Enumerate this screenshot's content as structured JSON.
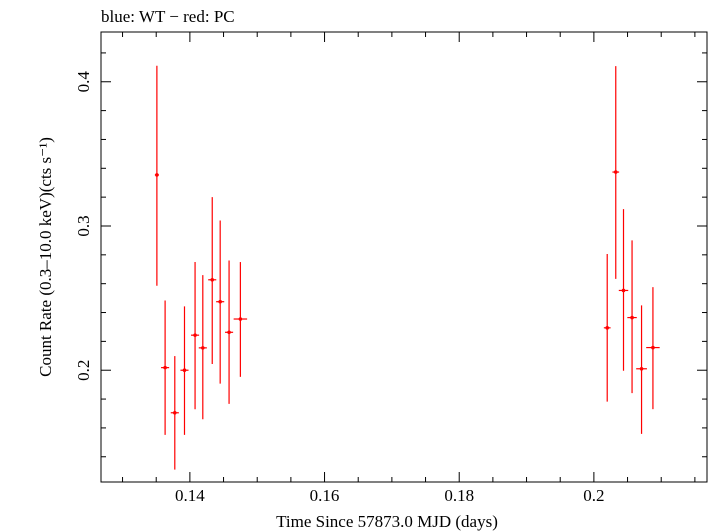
{
  "chart_data": {
    "type": "scatter",
    "title": "blue: WT − red: PC",
    "xlabel": "Time Since 57873.0 MJD (days)",
    "ylabel": "Count Rate (0.3–10.0 keV)(cts s⁻¹)",
    "xlim": [
      0.1268,
      0.2168
    ],
    "ylim": [
      0.1225,
      0.4345
    ],
    "x_ticks": [
      0.14,
      0.16,
      0.18,
      0.2
    ],
    "x_tick_labels": [
      "0.14",
      "0.16",
      "0.18",
      "0.2"
    ],
    "y_ticks": [
      0.2,
      0.3,
      0.4
    ],
    "y_tick_labels": [
      "0.2",
      "0.3",
      "0.4"
    ],
    "grid": false,
    "legend": "none",
    "series": [
      {
        "name": "PC",
        "color": "#ff0000",
        "points": [
          {
            "x": 0.1351,
            "xerr": 0.0003,
            "y": 0.3354,
            "ylo": 0.2586,
            "yhi": 0.4111
          },
          {
            "x": 0.13632,
            "xerr": 0.0006,
            "y": 0.2018,
            "ylo": 0.1552,
            "yhi": 0.2483
          },
          {
            "x": 0.13776,
            "xerr": 0.0006,
            "y": 0.1705,
            "ylo": 0.1311,
            "yhi": 0.2098
          },
          {
            "x": 0.1392,
            "xerr": 0.0006,
            "y": 0.2,
            "ylo": 0.1552,
            "yhi": 0.2443
          },
          {
            "x": 0.14077,
            "xerr": 0.0006,
            "y": 0.2243,
            "ylo": 0.1729,
            "yhi": 0.275
          },
          {
            "x": 0.14192,
            "xerr": 0.0006,
            "y": 0.2155,
            "ylo": 0.166,
            "yhi": 0.2659
          },
          {
            "x": 0.14332,
            "xerr": 0.0006,
            "y": 0.2627,
            "ylo": 0.2043,
            "yhi": 0.32
          },
          {
            "x": 0.1445,
            "xerr": 0.0006,
            "y": 0.2475,
            "ylo": 0.1907,
            "yhi": 0.3038
          },
          {
            "x": 0.14582,
            "xerr": 0.0006,
            "y": 0.2263,
            "ylo": 0.1767,
            "yhi": 0.2761
          },
          {
            "x": 0.1475,
            "xerr": 0.001,
            "y": 0.2355,
            "ylo": 0.1954,
            "yhi": 0.275
          },
          {
            "x": 0.20198,
            "xerr": 0.0005,
            "y": 0.2294,
            "ylo": 0.1782,
            "yhi": 0.2806
          },
          {
            "x": 0.20325,
            "xerr": 0.0005,
            "y": 0.3374,
            "ylo": 0.2633,
            "yhi": 0.4108
          },
          {
            "x": 0.2044,
            "xerr": 0.0007,
            "y": 0.2553,
            "ylo": 0.1996,
            "yhi": 0.3117
          },
          {
            "x": 0.20567,
            "xerr": 0.0007,
            "y": 0.2365,
            "ylo": 0.1841,
            "yhi": 0.29
          },
          {
            "x": 0.20708,
            "xerr": 0.0008,
            "y": 0.201,
            "ylo": 0.1559,
            "yhi": 0.245
          },
          {
            "x": 0.20877,
            "xerr": 0.001,
            "y": 0.2157,
            "ylo": 0.173,
            "yhi": 0.2576
          }
        ]
      }
    ]
  }
}
